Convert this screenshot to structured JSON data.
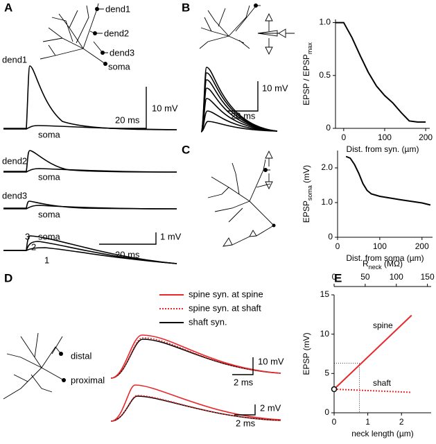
{
  "figure": {
    "panel_labels": [
      "A",
      "B",
      "C",
      "D",
      "E"
    ],
    "A": {
      "morph_labels": [
        "dend1",
        "dend2",
        "dend3",
        "soma"
      ],
      "trace_labels": [
        "dend1",
        "soma",
        "dend2",
        "soma",
        "dend3",
        "soma",
        "3",
        "2",
        "1",
        "soma"
      ],
      "scale_labels": [
        "10 mV",
        "20 ms",
        "1 mV",
        "20 ms"
      ]
    },
    "B": {
      "scale_labels": [
        "10 mV",
        "20 ms"
      ]
    },
    "D": {
      "legend": [
        "spine syn. at spine",
        "spine syn. at shaft",
        "shaft syn."
      ],
      "morph_labels": [
        "distal",
        "proximal"
      ],
      "scale_labels": [
        "10 mV",
        "2 ms",
        "2 mV",
        "2 ms"
      ]
    }
  },
  "chart_data": [
    {
      "type": "line",
      "xlabel": "Dist. from syn. (µm)",
      "ylabel": {
        "main": "EPSP / EPSP",
        "sub": "max"
      },
      "xlim": [
        -20,
        210
      ],
      "xticks": [
        0,
        100,
        200
      ],
      "ylim": [
        0,
        1.03
      ],
      "yticks": [
        0,
        0.5,
        {
          "value": 1,
          "label": "1.0"
        }
      ],
      "series": [
        {
          "color": "#000000",
          "x": [
            -20,
            0,
            20,
            40,
            60,
            80,
            100,
            120,
            140,
            160,
            180,
            200
          ],
          "values": [
            1,
            1,
            0.86,
            0.69,
            0.53,
            0.4,
            0.31,
            0.24,
            0.15,
            0.07,
            0.06,
            0.06
          ]
        }
      ]
    },
    {
      "type": "line",
      "xlabel": "Dist. from soma (µm)",
      "ylabel": {
        "main": "EPSP",
        "sub": "soma",
        "tail": " (mV)"
      },
      "xlim": [
        0,
        225
      ],
      "xticks": [
        0,
        100,
        200
      ],
      "ylim": [
        0,
        2.5
      ],
      "yticks": [
        0,
        {
          "value": 1,
          "label": "1.0"
        },
        {
          "value": 2,
          "label": "2.0"
        }
      ],
      "series": [
        {
          "color": "#000000",
          "x": [
            20,
            30,
            40,
            50,
            60,
            70,
            80,
            100,
            150,
            200,
            220
          ],
          "values": [
            2.33,
            2.28,
            2.1,
            1.85,
            1.55,
            1.35,
            1.25,
            1.18,
            1.08,
            0.99,
            0.93
          ]
        }
      ]
    },
    {
      "type": "line",
      "xlabel": "neck length (µm)",
      "x2label": {
        "main": "R",
        "sub": "neck",
        "tail": " (MΩ)"
      },
      "ylabel": {
        "main": "EPSP (mV)"
      },
      "xlim": [
        0,
        2.88
      ],
      "xticks": [
        0,
        1,
        2
      ],
      "x2lim": [
        0,
        156
      ],
      "x2ticks": [
        0,
        50,
        100,
        150
      ],
      "ylim": [
        0,
        15
      ],
      "yticks": [
        0,
        5,
        10,
        15
      ],
      "guide": {
        "x": 0.75,
        "y": 6.3
      },
      "series": [
        {
          "name": "spine",
          "color": "#e8282b",
          "style": "solid",
          "x": [
            0,
            2.3
          ],
          "values": [
            3,
            12.4
          ]
        },
        {
          "name": "shaft",
          "color": "#e8282b",
          "style": "dotted",
          "x": [
            0,
            2.3
          ],
          "values": [
            3,
            2.6
          ]
        }
      ]
    }
  ]
}
